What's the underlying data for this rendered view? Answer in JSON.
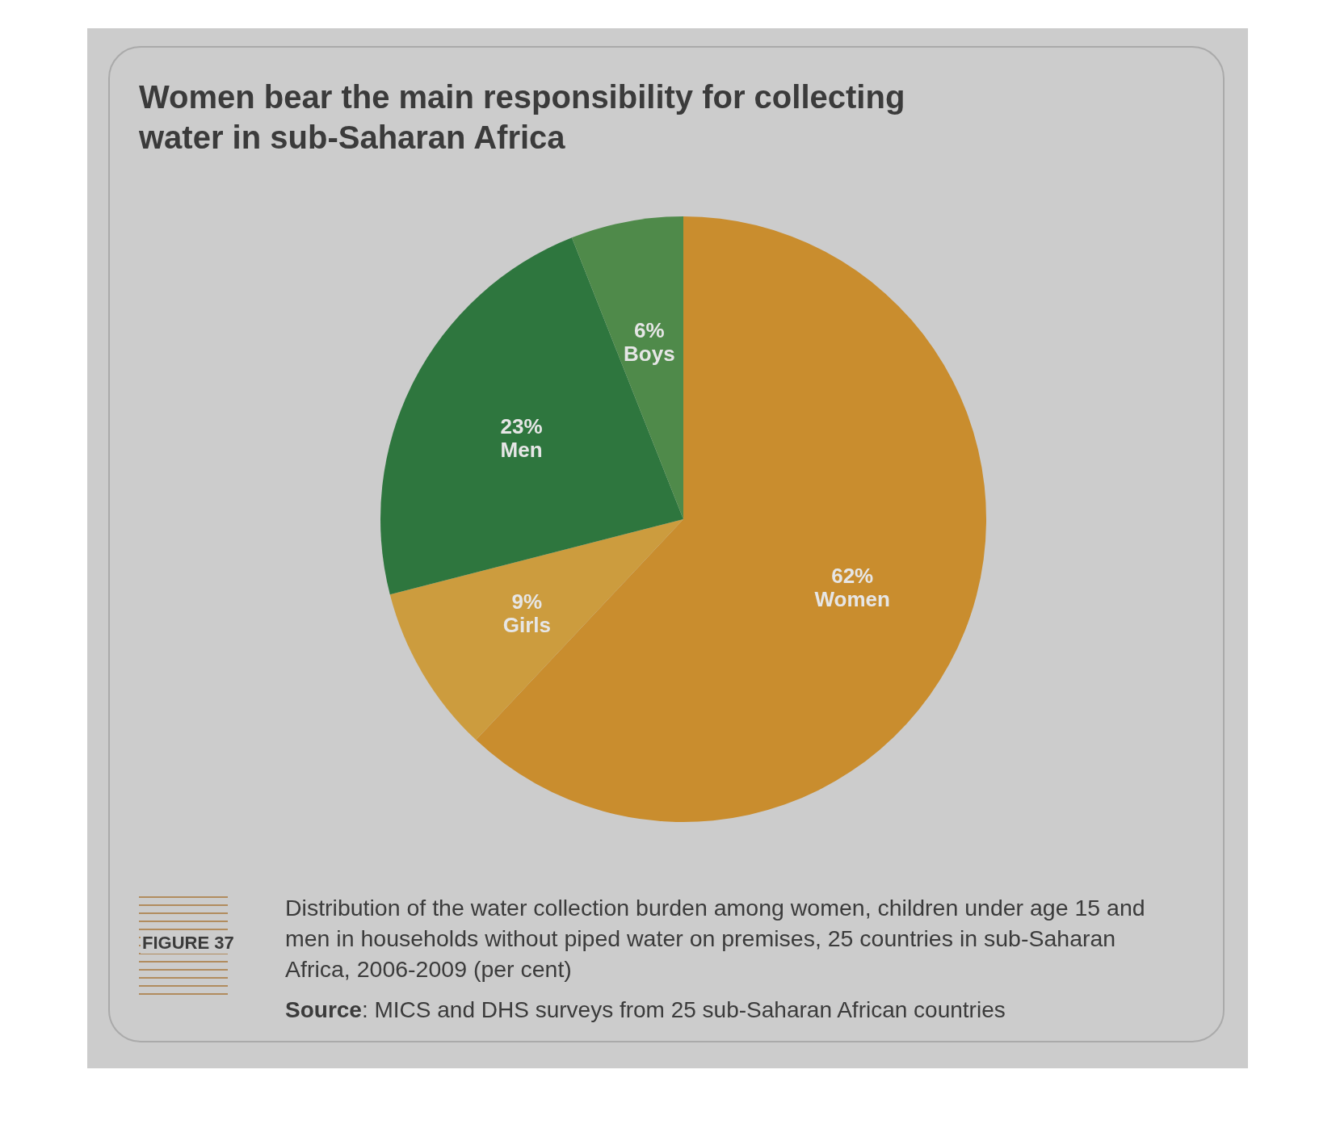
{
  "chart_data": {
    "type": "pie",
    "title": "Women bear the main responsibility for collecting water in sub-Saharan Africa",
    "categories": [
      "Women",
      "Girls",
      "Men",
      "Boys"
    ],
    "values": [
      62,
      9,
      23,
      6
    ],
    "colors": [
      "#c98d2e",
      "#cc9c3e",
      "#2e763e",
      "#4f8a4a"
    ],
    "value_labels": [
      "62%",
      "9%",
      "23%",
      "6%"
    ],
    "legend": false,
    "annotations": [
      "FIGURE 37",
      "Distribution of the water collection burden among women, children under age 15 and men in households without piped water on premises, 25 countries in sub-Saharan Africa, 2006-2009 (per cent)",
      "Source: MICS and DHS surveys from 25 sub-Saharan African countries"
    ]
  }
}
